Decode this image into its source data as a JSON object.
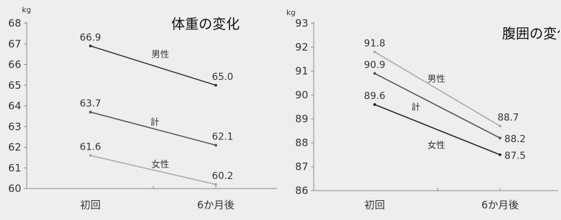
{
  "chart_data": [
    {
      "type": "line",
      "title": "体重の変化",
      "unit": "kg",
      "categories": [
        "初回",
        "6か月後"
      ],
      "ylim": [
        60,
        68
      ],
      "yticks": [
        60,
        61,
        62,
        63,
        64,
        65,
        66,
        67,
        68
      ],
      "series": [
        {
          "name": "男性",
          "values": [
            66.9,
            65.0
          ],
          "color": "#333333"
        },
        {
          "name": "計",
          "values": [
            63.7,
            62.1
          ],
          "color": "#555555"
        },
        {
          "name": "女性",
          "values": [
            61.6,
            60.2
          ],
          "color": "#aaaaaa"
        }
      ]
    },
    {
      "type": "line",
      "title": "腹囲の変化",
      "unit": "kg",
      "categories": [
        "初回",
        "6か月後"
      ],
      "ylim": [
        86,
        93
      ],
      "yticks": [
        86,
        87,
        88,
        89,
        90,
        91,
        92,
        93
      ],
      "series": [
        {
          "name": "男性",
          "values": [
            91.8,
            88.7
          ],
          "color": "#aaaaaa"
        },
        {
          "name": "計",
          "values": [
            90.9,
            88.2
          ],
          "color": "#555555"
        },
        {
          "name": "女性",
          "values": [
            89.6,
            87.5
          ],
          "color": "#222222"
        }
      ]
    }
  ]
}
